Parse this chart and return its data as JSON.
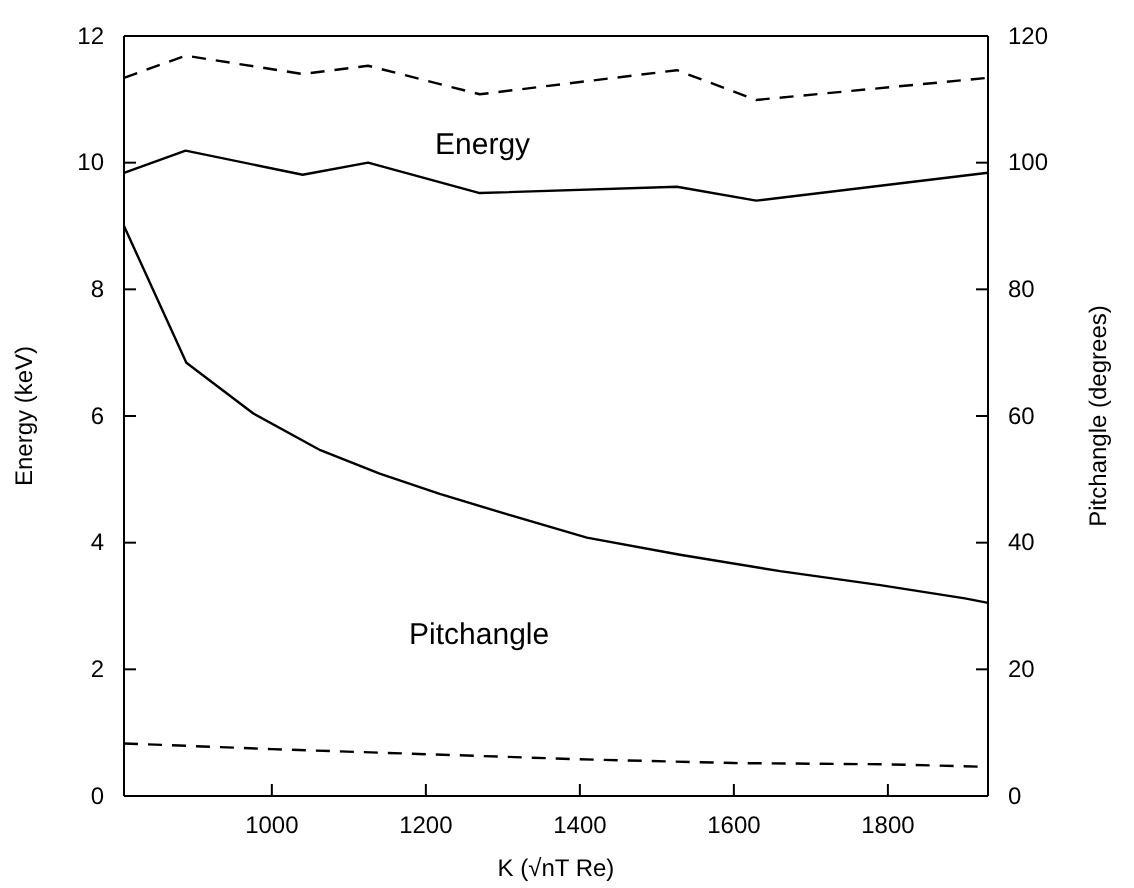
{
  "chart_data": {
    "type": "line",
    "xlabel": "K (√nT Re)",
    "ylabel": "Energy (keV)",
    "y2label": "Pitchangle (degrees)",
    "xlim": [
      808,
      1930
    ],
    "xticks": [
      1000,
      1200,
      1400,
      1600,
      1800
    ],
    "ylim": [
      0,
      12
    ],
    "yticks": [
      0,
      2,
      4,
      6,
      8,
      10,
      12
    ],
    "y2lim": [
      0,
      120
    ],
    "y2ticks": [
      0,
      20,
      40,
      60,
      80,
      100,
      120
    ],
    "grid": false,
    "marker": "none",
    "annotations": [
      "Energy",
      "Pitchangle"
    ],
    "series": [
      {
        "color": "#000000",
        "line_style": "dashed",
        "x": [
          808,
          888,
          1040,
          1125,
          1270,
          1526,
          1629,
          1930
        ],
        "values": [
          11.34,
          11.69,
          11.4,
          11.53,
          11.08,
          11.46,
          10.99,
          11.34
        ]
      },
      {
        "color": "#000000",
        "line_style": "solid",
        "x": [
          808,
          888,
          1040,
          1125,
          1270,
          1526,
          1629,
          1930
        ],
        "values": [
          9.84,
          10.19,
          9.81,
          10.0,
          9.52,
          9.62,
          9.4,
          9.84
        ]
      },
      {
        "color": "#000000",
        "line_style": "solid",
        "axis": "y2",
        "x": [
          808,
          889,
          976,
          1063,
          1140,
          1218,
          1305,
          1409,
          1530,
          1660,
          1790,
          1900,
          1930
        ],
        "values": [
          90,
          68.4,
          60.4,
          54.6,
          50.9,
          47.7,
          44.5,
          40.8,
          38.1,
          35.5,
          33.3,
          31.2,
          30.5
        ]
      },
      {
        "color": "#000000",
        "line_style": "dashed",
        "axis": "y2",
        "x": [
          808,
          1000,
          1200,
          1400,
          1600,
          1800,
          1930
        ],
        "values": [
          8.3,
          7.4,
          6.6,
          5.8,
          5.2,
          5.0,
          4.6
        ]
      }
    ]
  }
}
